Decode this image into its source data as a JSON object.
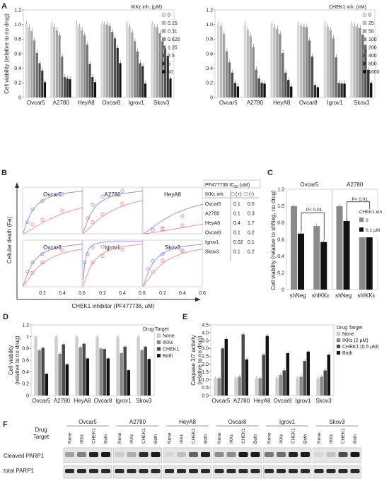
{
  "panel_letters": [
    "A",
    "B",
    "C",
    "D",
    "E",
    "F"
  ],
  "colors": {
    "gray_ramp": [
      "#d9d9d9",
      "#bdbdbd",
      "#a6a6a6",
      "#8c8c8c",
      "#6e6e6e",
      "#4f4f4f",
      "#303030",
      "#101010"
    ],
    "blue": "#7a7aff",
    "red": "#ff7a7a",
    "bar_light": "#cfcfcf",
    "bar_mid": "#8a8a8a",
    "bar_dark": "#4a4a4a",
    "bar_black": "#111111"
  },
  "chart_data": [
    {
      "id": "A1",
      "type": "bar",
      "ylabel": "Cell viability (relative to no drug)",
      "ylim": [
        0,
        1.2
      ],
      "yticks": [
        "0",
        "0.2",
        "0.4",
        "0.6",
        "0.8",
        "1.0",
        "1.2"
      ],
      "categories": [
        "Ovcar5",
        "A2780",
        "HeyA8",
        "Ovcar8",
        "Igrov1",
        "Skov3"
      ],
      "legend_title": "IKKε inh. (μM)",
      "series": [
        {
          "name": "0",
          "values": [
            1.0,
            1.0,
            1.0,
            1.0,
            1.0,
            1.0
          ]
        },
        {
          "name": "0.15",
          "values": [
            0.96,
            0.97,
            0.97,
            1.0,
            0.97,
            0.97
          ]
        },
        {
          "name": "0.31",
          "values": [
            0.91,
            0.92,
            0.92,
            1.0,
            0.89,
            0.96
          ]
        },
        {
          "name": "0.625",
          "values": [
            0.78,
            0.85,
            0.85,
            0.98,
            0.77,
            0.88
          ]
        },
        {
          "name": "1.25",
          "values": [
            0.61,
            0.56,
            0.72,
            0.9,
            0.63,
            0.77
          ]
        },
        {
          "name": "2.5",
          "values": [
            0.47,
            0.28,
            0.46,
            0.81,
            0.47,
            0.67
          ]
        },
        {
          "name": "5",
          "values": [
            0.37,
            0.26,
            0.28,
            0.68,
            0.43,
            0.57
          ]
        },
        {
          "name": "10",
          "values": [
            0.21,
            0.25,
            0.21,
            0.47,
            0.19,
            0.26
          ]
        }
      ]
    },
    {
      "id": "A2",
      "type": "bar",
      "ylabel": "",
      "ylim": [
        0,
        1.2
      ],
      "yticks": [
        "0",
        "0.2",
        "0.4",
        "0.6",
        "0.8",
        "1.0",
        "1.2"
      ],
      "categories": [
        "Ovcar5",
        "A2780",
        "HeyA8",
        "Ovcar8",
        "Igrov1",
        "Skov3"
      ],
      "legend_title": "CHEK1 inh. (nM)",
      "series": [
        {
          "name": "0",
          "values": [
            1.0,
            1.0,
            1.0,
            1.0,
            1.0,
            1.0
          ]
        },
        {
          "name": "25",
          "values": [
            0.98,
            0.92,
            0.96,
            0.98,
            0.97,
            0.98
          ]
        },
        {
          "name": "50",
          "values": [
            0.87,
            0.84,
            0.94,
            0.97,
            0.92,
            0.97
          ]
        },
        {
          "name": "100",
          "values": [
            0.63,
            0.69,
            0.87,
            0.96,
            0.81,
            0.95
          ]
        },
        {
          "name": "200",
          "values": [
            0.48,
            0.38,
            0.61,
            0.78,
            0.55,
            0.86
          ]
        },
        {
          "name": "400",
          "values": [
            0.34,
            0.26,
            0.34,
            0.56,
            0.2,
            0.72
          ]
        },
        {
          "name": "800",
          "values": [
            0.2,
            0.2,
            0.24,
            0.17,
            0.19,
            0.38
          ]
        },
        {
          "name": "1600",
          "values": [
            0.15,
            0.19,
            0.15,
            0.14,
            0.19,
            0.2
          ]
        }
      ]
    },
    {
      "id": "B",
      "type": "scatter",
      "ylabel": "Cellular death (Fa)",
      "xlabel": "CHEK1 inhibitor (PF477736, uM)",
      "xticks": [
        "0.2",
        "0.4",
        "0.6"
      ],
      "xlim": [
        0,
        0.6
      ],
      "ylim": [
        0,
        1
      ],
      "panels": [
        {
          "name": "Ovcar5",
          "plus": [
            [
              0.05,
              0.25
            ],
            [
              0.1,
              0.52
            ],
            [
              0.2,
              0.7
            ],
            [
              0.4,
              0.85
            ]
          ],
          "minus": [
            [
              0.1,
              0.2
            ],
            [
              0.2,
              0.3
            ],
            [
              0.4,
              0.5
            ]
          ],
          "ic_plus": 0.1,
          "ic_minus": 0.5
        },
        {
          "name": "A2780",
          "plus": [
            [
              0.05,
              0.33
            ],
            [
              0.1,
              0.62
            ],
            [
              0.2,
              0.8
            ],
            [
              0.4,
              0.92
            ]
          ],
          "minus": [
            [
              0.1,
              0.25
            ],
            [
              0.2,
              0.42
            ],
            [
              0.4,
              0.64
            ]
          ],
          "ic_plus": 0.1,
          "ic_minus": 0.3
        },
        {
          "name": "HeyA8",
          "plus": [
            [
              0.1,
              0.08
            ],
            [
              0.2,
              0.12
            ],
            [
              0.4,
              0.38
            ]
          ],
          "minus": [
            [
              0.2,
              0.1
            ],
            [
              0.4,
              0.18
            ]
          ],
          "ic_plus": 0.4,
          "ic_minus": 1.7
        },
        {
          "name": "Ovcar8",
          "plus": [
            [
              0.05,
              0.32
            ],
            [
              0.1,
              0.52
            ],
            [
              0.2,
              0.7
            ]
          ],
          "minus": [
            [
              0.1,
              0.3
            ],
            [
              0.2,
              0.52
            ],
            [
              0.4,
              0.78
            ]
          ],
          "ic_plus": 0.1,
          "ic_minus": 0.2
        },
        {
          "name": "Igrov1",
          "plus": [
            [
              0.02,
              0.52
            ],
            [
              0.05,
              0.7
            ],
            [
              0.1,
              0.84
            ],
            [
              0.2,
              0.86
            ]
          ],
          "minus": [
            [
              0.1,
              0.52
            ],
            [
              0.2,
              0.66
            ],
            [
              0.4,
              0.8
            ]
          ],
          "ic_plus": 0.02,
          "ic_minus": 0.1
        },
        {
          "name": "Skov3",
          "plus": [
            [
              0.05,
              0.38
            ],
            [
              0.1,
              0.55
            ],
            [
              0.2,
              0.7
            ],
            [
              0.4,
              0.78
            ]
          ],
          "minus": [
            [
              0.1,
              0.32
            ],
            [
              0.2,
              0.56
            ],
            [
              0.4,
              0.76
            ]
          ],
          "ic_plus": 0.1,
          "ic_minus": 0.2
        }
      ],
      "table": {
        "title": "PF477736 IC",
        "title_sub": "50",
        "title_unit": " (uM)",
        "header_label": "IKKε inh",
        "header_plus": "(+)",
        "header_minus": "(-)",
        "rows": [
          [
            "Ovcar5",
            "0.1",
            "0.5"
          ],
          [
            "A2780",
            "0.1",
            "0.3"
          ],
          [
            "HeyA8",
            "0.4",
            "1.7"
          ],
          [
            "Ovcar8",
            "0.1",
            "0.2"
          ],
          [
            "Igrov1",
            "0.02",
            "0.1"
          ],
          [
            "Skov3",
            "0.1",
            "0.2"
          ]
        ]
      }
    },
    {
      "id": "C",
      "type": "bar",
      "ylabel": "Cell viability (relative to shNeg, no drug)",
      "ylim": [
        0,
        1.2
      ],
      "yticks": [
        "0",
        "0.2",
        "0.4",
        "0.6",
        "0.8",
        "1.0",
        "1.2"
      ],
      "groups": [
        "Ovcar5",
        "A2780"
      ],
      "categories": [
        "shNeg",
        "shIKKε",
        "shNeg",
        "shIKKε"
      ],
      "legend_title": "CHEK1 inh",
      "series": [
        {
          "name": "0",
          "values": [
            1.0,
            0.76,
            1.0,
            0.8
          ]
        },
        {
          "name": "0.1 μM",
          "values": [
            0.67,
            0.57,
            0.82,
            0.65
          ]
        }
      ],
      "annotations": [
        "P< 0.01",
        "P< 0.01"
      ]
    },
    {
      "id": "D",
      "type": "bar",
      "ylabel": "Cell viability (relative to no drug)",
      "ylim": [
        0,
        1.2
      ],
      "yticks": [
        "0",
        "0.2",
        "0.4",
        "0.6",
        "0.8",
        "1",
        "1.2"
      ],
      "categories": [
        "Ovcar5",
        "A2780",
        "HeyA8",
        "Ovcar8",
        "Igrov1",
        "Skov3"
      ],
      "legend_title": "Drug Target",
      "series": [
        {
          "name": "None",
          "values": [
            1.0,
            1.0,
            1.0,
            1.0,
            1.0,
            1.0
          ]
        },
        {
          "name": "IKKε",
          "values": [
            0.77,
            0.71,
            0.82,
            0.8,
            0.72,
            0.77
          ]
        },
        {
          "name": "CHEK1",
          "values": [
            0.81,
            0.87,
            0.88,
            0.79,
            0.83,
            0.83
          ]
        },
        {
          "name": "Both",
          "values": [
            0.37,
            0.53,
            0.63,
            0.63,
            0.43,
            0.62
          ]
        }
      ]
    },
    {
      "id": "E",
      "type": "bar",
      "ylabel": "Caspase 3/7 activity (relative to no drug)",
      "ylim": [
        0,
        4.5
      ],
      "yticks": [
        "0.0",
        "0.5",
        "1.0",
        "1.5",
        "2.0",
        "2.5",
        "3.0",
        "3.5",
        "4.0",
        "4.5"
      ],
      "categories": [
        "Ovcar5",
        "A2780",
        "HeyA8",
        "Ovcar8",
        "Igrov1",
        "Skov3"
      ],
      "legend_title": "Drug Target",
      "series": [
        {
          "name": "None",
          "values": [
            1.1,
            1.1,
            1.1,
            1.1,
            1.1,
            1.1
          ]
        },
        {
          "name": "IKKε (2 μM)",
          "values": [
            1.1,
            1.2,
            1.1,
            1.3,
            1.2,
            1.2
          ]
        },
        {
          "name": "CHEK1 (0.5 μM)",
          "values": [
            3.0,
            3.9,
            2.6,
            1.6,
            2.2,
            1.6
          ]
        },
        {
          "name": "Both",
          "values": [
            3.6,
            2.3,
            3.8,
            2.7,
            2.8,
            2.6
          ]
        }
      ]
    }
  ],
  "western_blot": {
    "drug_target_label": "Drug\nTarget",
    "lines": [
      "Ovcar5",
      "A2780",
      "HeyA8",
      "Ovcar8",
      "Igrov1",
      "Skov3"
    ],
    "lanes": [
      "None",
      "IKKε",
      "CHEK1",
      "Both"
    ],
    "rows": [
      "Cleaved PARP1",
      "total PARP1"
    ],
    "cleaved_intensity": [
      [
        0.3,
        0.45,
        0.9,
        0.95
      ],
      [
        0.1,
        0.25,
        0.85,
        0.95
      ],
      [
        0.05,
        0.15,
        0.6,
        0.9
      ],
      [
        0.4,
        0.4,
        0.95,
        0.95
      ],
      [
        0.5,
        0.55,
        0.9,
        0.95
      ],
      [
        0.05,
        0.15,
        0.7,
        0.95
      ]
    ]
  }
}
